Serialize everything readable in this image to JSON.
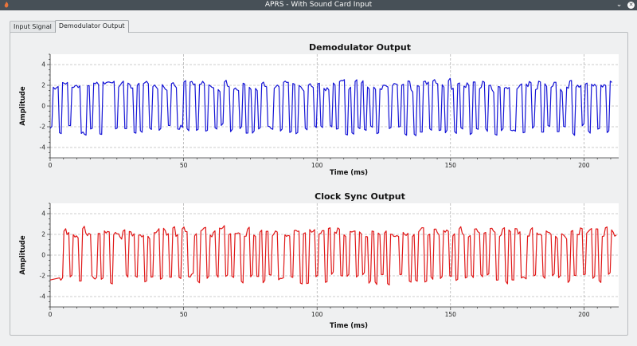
{
  "window": {
    "title": "APRS - With Sound Card Input",
    "controls": [
      "chevron-down",
      "close"
    ]
  },
  "tabs": [
    {
      "label": "Input Signal",
      "active": false
    },
    {
      "label": "Demodulator Output",
      "active": true
    }
  ],
  "chart_data": [
    {
      "type": "line",
      "title": "Demodulator Output",
      "xlabel": "Time (ms)",
      "ylabel": "Amplitude",
      "xlim": [
        0,
        213
      ],
      "ylim": [
        -5,
        5
      ],
      "xticks": [
        0,
        50,
        100,
        150,
        200
      ],
      "yticks": [
        -4,
        -2,
        0,
        2,
        4
      ],
      "grid": true,
      "color": "#1515d6",
      "series": [
        {
          "bits": "0110110111001011011110110110101101101101100101101101101011011010101011001101101011011010110101101010101010111011010110101101101011010110101101101011001101101101011010110110101101101"
        }
      ],
      "high": 2,
      "low": -2.3
    },
    {
      "type": "line",
      "title": "Clock Sync Output",
      "xlabel": "Time (ms)",
      "ylabel": "Amplitude",
      "xlim": [
        0,
        213
      ],
      "ylim": [
        -5,
        5
      ],
      "xticks": [
        0,
        50,
        100,
        150,
        200
      ],
      "yticks": [
        -4,
        -2,
        0,
        2,
        4
      ],
      "grid": true,
      "color": "#e01818",
      "series": [
        {
          "bits": "0110110111001011011110110110101101101101100101101101101011011010101011001101101011011010110101101010101010111011010110101101101011010110101101101011001101101101011010110110101101101"
        }
      ],
      "high": 2.2,
      "low": -2.3
    }
  ]
}
